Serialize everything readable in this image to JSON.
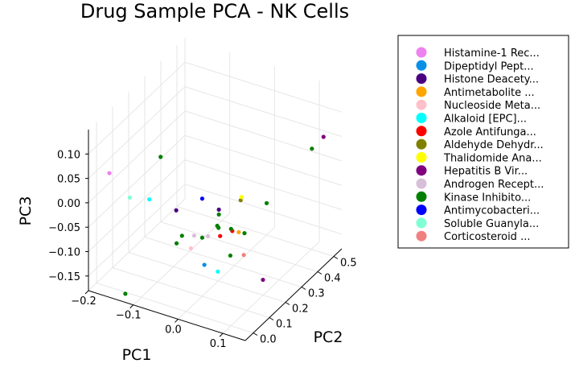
{
  "chart_data": {
    "type": "scatter",
    "title": "Drug Sample PCA - NK Cells",
    "xlabel": "PC1",
    "ylabel": "PC2",
    "zlabel": "PC3",
    "xlim": [
      -0.2,
      0.15
    ],
    "ylim": [
      -0.05,
      0.55
    ],
    "zlim": [
      -0.18,
      0.15
    ],
    "x_ticks": [
      -0.2,
      -0.1,
      0.0,
      0.1
    ],
    "x_tick_labels": [
      "−0.2",
      "−0.1",
      "0.0",
      "0.1"
    ],
    "y_ticks": [
      0.0,
      0.1,
      0.2,
      0.3,
      0.4,
      0.5
    ],
    "y_tick_labels": [
      "0.0",
      "0.1",
      "0.2",
      "0.3",
      "0.4",
      "0.5"
    ],
    "z_ticks": [
      -0.15,
      -0.1,
      -0.05,
      0.0,
      0.05,
      0.1
    ],
    "z_tick_labels": [
      "−0.15",
      "−0.10",
      "−0.05",
      "0.00",
      "0.05",
      "0.10"
    ],
    "grid": true,
    "legend_position": "top-right outside",
    "series": [
      {
        "name": "Histamine-1 Rec...",
        "color": "#ee82ee",
        "points": [
          [
            -0.2,
            0.08,
            0.02
          ]
        ]
      },
      {
        "name": "Dipeptidyl Pept...",
        "color": "#0a8fe6",
        "points": [
          [
            0.03,
            0.03,
            -0.085
          ]
        ]
      },
      {
        "name": "Histone Deacety...",
        "color": "#4b0082",
        "points": [
          [
            -0.04,
            0.05,
            0.0
          ],
          [
            0.03,
            0.12,
            0.0
          ]
        ]
      },
      {
        "name": "Antimetabolite ...",
        "color": "#ffa500",
        "points": [
          [
            0.06,
            0.16,
            -0.05
          ]
        ]
      },
      {
        "name": "Nucleoside Meta...",
        "color": "#ffc0cb",
        "points": [
          [
            0.0,
            0.03,
            -0.06
          ]
        ]
      },
      {
        "name": "Alkaloid [EPC]...",
        "color": "#00ffff",
        "points": [
          [
            -0.1,
            0.05,
            0.005
          ],
          [
            0.06,
            0.03,
            -0.09
          ]
        ]
      },
      {
        "name": "Azole Antifunga...",
        "color": "#ff0000",
        "points": [
          [
            0.04,
            0.1,
            -0.045
          ],
          [
            0.06,
            0.12,
            -0.035
          ]
        ]
      },
      {
        "name": "Aldehyde Dehydr...",
        "color": "#808000",
        "points": [
          [
            0.05,
            0.2,
            0.0
          ]
        ]
      },
      {
        "name": "Thalidomide Ana...",
        "color": "#ffff00",
        "points": [
          [
            0.05,
            0.205,
            0.005
          ]
        ]
      },
      {
        "name": "Hepatitis B Vir...",
        "color": "#800080",
        "points": [
          [
            0.15,
            0.06,
            -0.09
          ],
          [
            0.12,
            0.52,
            0.05
          ]
        ]
      },
      {
        "name": "Androgen Recept...",
        "color": "#d8bfd8",
        "points": [
          [
            0.0,
            0.05,
            -0.04
          ],
          [
            0.02,
            0.08,
            -0.045
          ]
        ]
      },
      {
        "name": "Kinase Inhibito...",
        "color": "#008000",
        "points": [
          [
            -0.1,
            0.12,
            0.07
          ],
          [
            -0.02,
            0.03,
            -0.04
          ],
          [
            0.03,
            0.12,
            -0.01
          ],
          [
            0.05,
            0.14,
            -0.04
          ],
          [
            0.0,
            0.1,
            -0.06
          ],
          [
            0.07,
            0.08,
            -0.07
          ],
          [
            -0.05,
            0.08,
            -0.08
          ],
          [
            0.04,
            0.09,
            -0.025
          ],
          [
            0.09,
            0.25,
            -0.01
          ],
          [
            0.13,
            0.42,
            0.06
          ],
          [
            -0.15,
            0.04,
            -0.2
          ],
          [
            0.08,
            0.14,
            -0.04
          ],
          [
            0.03,
            0.11,
            -0.03
          ]
        ]
      },
      {
        "name": "Antimycobacteri...",
        "color": "#0000ff",
        "points": [
          [
            0.0,
            0.1,
            0.02
          ]
        ]
      },
      {
        "name": "Soluble Guanyla...",
        "color": "#7fffd4",
        "points": [
          [
            -0.14,
            0.04,
            0.0
          ]
        ]
      },
      {
        "name": "Corticosteroid ...",
        "color": "#f08080",
        "points": [
          [
            0.1,
            0.08,
            -0.06
          ]
        ]
      }
    ]
  }
}
